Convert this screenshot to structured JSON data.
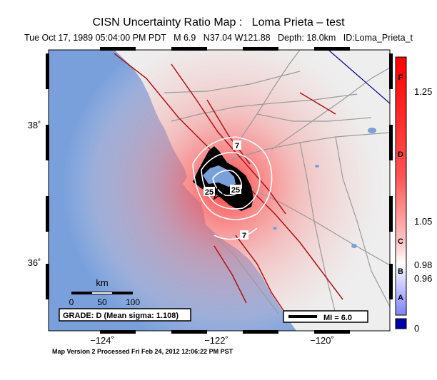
{
  "title": "CISN Uncertainty Ratio Map :   Loma Prieta – test",
  "subtitle": "Tue Oct 17, 1989 05:04:00 PM PDT   M 6.9   N37.04 W121.88   Depth: 18.0km   ID:Loma_Prieta_t",
  "lat_labels": [
    "38˚",
    "36˚"
  ],
  "lon_labels": [
    "−124˚",
    "−122˚",
    "−120˚"
  ],
  "contour_labels": [
    "7",
    "25",
    "25",
    "7"
  ],
  "scale_bar": {
    "title": "km",
    "ticks": [
      "0",
      "50",
      "100"
    ]
  },
  "grade_box": "GRADE: D (Mean sigma: 1.108)",
  "mi_box": "MI = 6.0",
  "colorbar": {
    "letters": [
      "F",
      "D",
      "C",
      "B",
      "A"
    ],
    "values": [
      "1.25",
      "1.05",
      "0.98",
      "0.96",
      "0"
    ]
  },
  "footer": "Map Version 2 Processed Fri Feb 24, 2012 12:06:22 PM PST",
  "colors": {
    "ocean": "#7aa0dc",
    "land": "#eeeeee",
    "fault": "#aa1414",
    "road": "#9a9a9a",
    "high": "#ff0000",
    "low": "#0000aa"
  }
}
